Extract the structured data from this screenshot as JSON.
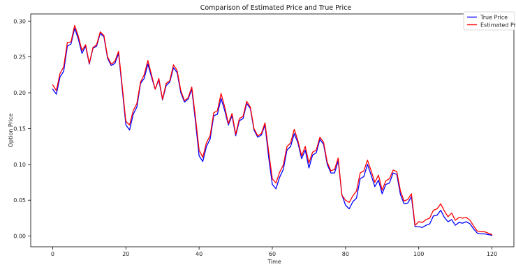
{
  "chart_data": {
    "type": "line",
    "title": "Comparison of Estimated Price and True Price",
    "xlabel": "Time",
    "ylabel": "Option Price",
    "xlim": [
      -6,
      126
    ],
    "ylim": [
      -0.015,
      0.31
    ],
    "xticks": [
      0,
      20,
      40,
      60,
      80,
      100,
      120
    ],
    "yticks": [
      0.0,
      0.05,
      0.1,
      0.15,
      0.2,
      0.25,
      0.3
    ],
    "grid": false,
    "legend_position": "top-right",
    "series": [
      {
        "name": "True Price",
        "color": "#0000ff",
        "x": [
          0,
          1,
          2,
          3,
          4,
          5,
          6,
          7,
          8,
          9,
          10,
          11,
          12,
          13,
          14,
          15,
          16,
          17,
          18,
          19,
          20,
          21,
          22,
          23,
          24,
          25,
          26,
          27,
          28,
          29,
          30,
          31,
          32,
          33,
          34,
          35,
          36,
          37,
          38,
          39,
          40,
          41,
          42,
          43,
          44,
          45,
          46,
          47,
          48,
          49,
          50,
          51,
          52,
          53,
          54,
          55,
          56,
          57,
          58,
          59,
          60,
          61,
          62,
          63,
          64,
          65,
          66,
          67,
          68,
          69,
          70,
          71,
          72,
          73,
          74,
          75,
          76,
          77,
          78,
          79,
          80,
          81,
          82,
          83,
          84,
          85,
          86,
          87,
          88,
          89,
          90,
          91,
          92,
          93,
          94,
          95,
          96,
          97,
          98,
          99,
          100,
          101,
          102,
          103,
          104,
          105,
          106,
          107,
          108,
          109,
          110,
          111,
          112,
          113,
          114,
          115,
          116,
          117,
          118,
          119,
          120
        ],
        "values": [
          0.205,
          0.198,
          0.222,
          0.23,
          0.265,
          0.268,
          0.29,
          0.275,
          0.255,
          0.265,
          0.24,
          0.262,
          0.265,
          0.283,
          0.278,
          0.248,
          0.238,
          0.241,
          0.255,
          0.205,
          0.155,
          0.148,
          0.17,
          0.18,
          0.213,
          0.22,
          0.24,
          0.222,
          0.205,
          0.218,
          0.19,
          0.21,
          0.215,
          0.235,
          0.228,
          0.2,
          0.187,
          0.191,
          0.205,
          0.16,
          0.112,
          0.104,
          0.125,
          0.135,
          0.168,
          0.17,
          0.192,
          0.175,
          0.155,
          0.168,
          0.14,
          0.161,
          0.164,
          0.185,
          0.178,
          0.148,
          0.138,
          0.141,
          0.155,
          0.11,
          0.072,
          0.066,
          0.082,
          0.093,
          0.12,
          0.125,
          0.143,
          0.13,
          0.108,
          0.12,
          0.095,
          0.113,
          0.116,
          0.135,
          0.128,
          0.1,
          0.088,
          0.088,
          0.105,
          0.058,
          0.043,
          0.038,
          0.048,
          0.053,
          0.08,
          0.083,
          0.1,
          0.085,
          0.069,
          0.078,
          0.059,
          0.072,
          0.074,
          0.088,
          0.086,
          0.058,
          0.045,
          0.046,
          0.055,
          0.013,
          0.013,
          0.012,
          0.015,
          0.017,
          0.028,
          0.029,
          0.036,
          0.026,
          0.02,
          0.023,
          0.015,
          0.019,
          0.018,
          0.02,
          0.017,
          0.01,
          0.004,
          0.003,
          0.003,
          0.002,
          0.001
        ]
      },
      {
        "name": "Estimated Price",
        "color": "#ff0000",
        "x": [
          0,
          1,
          2,
          3,
          4,
          5,
          6,
          7,
          8,
          9,
          10,
          11,
          12,
          13,
          14,
          15,
          16,
          17,
          18,
          19,
          20,
          21,
          22,
          23,
          24,
          25,
          26,
          27,
          28,
          29,
          30,
          31,
          32,
          33,
          34,
          35,
          36,
          37,
          38,
          39,
          40,
          41,
          42,
          43,
          44,
          45,
          46,
          47,
          48,
          49,
          50,
          51,
          52,
          53,
          54,
          55,
          56,
          57,
          58,
          59,
          60,
          61,
          62,
          63,
          64,
          65,
          66,
          67,
          68,
          69,
          70,
          71,
          72,
          73,
          74,
          75,
          76,
          77,
          78,
          79,
          80,
          81,
          82,
          83,
          84,
          85,
          86,
          87,
          88,
          89,
          90,
          91,
          92,
          93,
          94,
          95,
          96,
          97,
          98,
          99,
          100,
          101,
          102,
          103,
          104,
          105,
          106,
          107,
          108,
          109,
          110,
          111,
          112,
          113,
          114,
          115,
          116,
          117,
          118,
          119,
          120
        ],
        "values": [
          0.211,
          0.203,
          0.227,
          0.236,
          0.27,
          0.271,
          0.294,
          0.279,
          0.259,
          0.267,
          0.241,
          0.263,
          0.267,
          0.285,
          0.28,
          0.25,
          0.24,
          0.244,
          0.258,
          0.209,
          0.16,
          0.155,
          0.175,
          0.185,
          0.215,
          0.225,
          0.245,
          0.225,
          0.205,
          0.22,
          0.191,
          0.213,
          0.217,
          0.239,
          0.231,
          0.203,
          0.189,
          0.193,
          0.208,
          0.166,
          0.12,
          0.11,
          0.13,
          0.14,
          0.172,
          0.175,
          0.199,
          0.18,
          0.157,
          0.171,
          0.142,
          0.164,
          0.167,
          0.188,
          0.18,
          0.15,
          0.14,
          0.143,
          0.158,
          0.118,
          0.08,
          0.074,
          0.089,
          0.099,
          0.125,
          0.13,
          0.149,
          0.133,
          0.112,
          0.125,
          0.102,
          0.117,
          0.12,
          0.138,
          0.131,
          0.103,
          0.091,
          0.093,
          0.109,
          0.057,
          0.05,
          0.047,
          0.056,
          0.063,
          0.088,
          0.091,
          0.106,
          0.091,
          0.075,
          0.085,
          0.064,
          0.077,
          0.08,
          0.092,
          0.09,
          0.063,
          0.049,
          0.051,
          0.059,
          0.015,
          0.02,
          0.019,
          0.023,
          0.025,
          0.036,
          0.038,
          0.045,
          0.035,
          0.027,
          0.032,
          0.022,
          0.026,
          0.025,
          0.026,
          0.022,
          0.014,
          0.007,
          0.006,
          0.006,
          0.004,
          0.002
        ]
      }
    ]
  }
}
